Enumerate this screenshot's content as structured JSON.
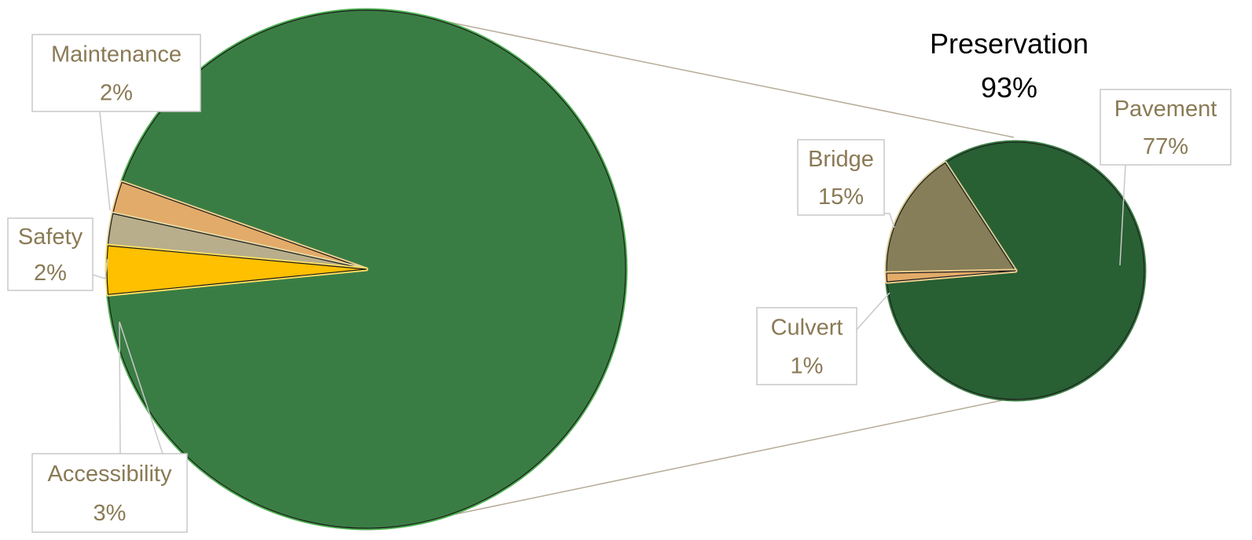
{
  "chart_data": {
    "type": "pie",
    "variant": "pie-of-pie",
    "main": {
      "slices": [
        {
          "name": "Preservation",
          "label": "Preservation",
          "value": 93,
          "value_label": "93%",
          "color": "#3a7d44"
        },
        {
          "name": "Maintenance",
          "label": "Maintenance",
          "value": 2,
          "value_label": "2%",
          "color": "#e3ab69"
        },
        {
          "name": "Safety",
          "label": "Safety",
          "value": 2,
          "value_label": "2%",
          "color": "#b8ae8b"
        },
        {
          "name": "Accessibility",
          "label": "Accessibility",
          "value": 3,
          "value_label": "3%",
          "color": "#ffc000"
        }
      ]
    },
    "breakout": {
      "of": "Preservation",
      "slices": [
        {
          "name": "Pavement",
          "label": "Pavement",
          "value": 77,
          "value_label": "77%",
          "color": "#285f33"
        },
        {
          "name": "Bridge",
          "label": "Bridge",
          "value": 15,
          "value_label": "15%",
          "color": "#857e58"
        },
        {
          "name": "Culvert",
          "label": "Culvert",
          "value": 1,
          "value_label": "1%",
          "color": "#e3ab69"
        }
      ]
    },
    "legend": "none"
  }
}
